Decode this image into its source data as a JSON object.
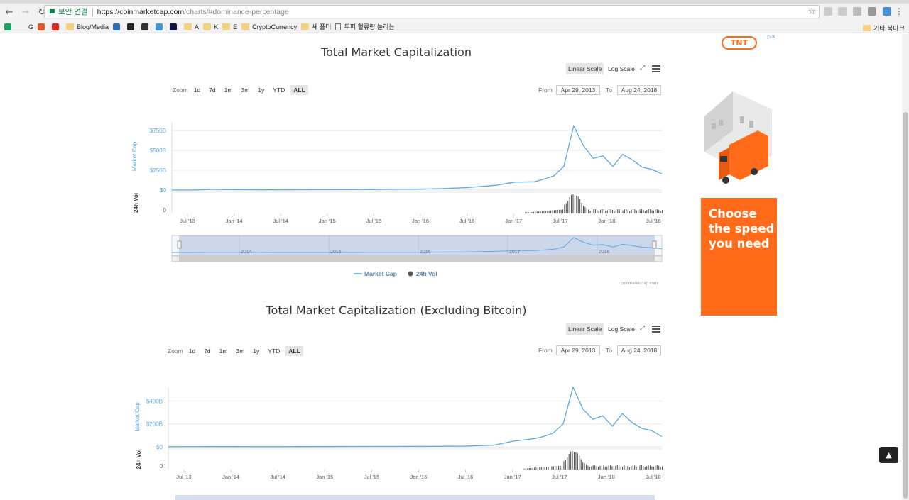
{
  "browser": {
    "secure_label": "보안 연결",
    "url_host": "https://coinmarketcap.com",
    "url_path": "/charts/#dominance-percentage",
    "bookmarks": [
      {
        "label": "",
        "type": "icon",
        "color": "#1aa260"
      },
      {
        "label": "G",
        "type": "text",
        "color": "#4285f4"
      },
      {
        "label": "",
        "type": "icon",
        "color": "#e65a28"
      },
      {
        "label": "",
        "type": "icon",
        "color": "#e62117"
      },
      {
        "label": "Blog/Media",
        "type": "folder"
      },
      {
        "label": "",
        "type": "icon",
        "color": "#2a6ebb"
      },
      {
        "label": "",
        "type": "icon",
        "color": "#222222"
      },
      {
        "label": "",
        "type": "icon",
        "color": "#333333"
      },
      {
        "label": "",
        "type": "icon",
        "color": "#3b99d8"
      },
      {
        "label": "",
        "type": "icon",
        "color": "#111144"
      },
      {
        "label": "A",
        "type": "folder"
      },
      {
        "label": "K",
        "type": "folder"
      },
      {
        "label": "E",
        "type": "folder"
      },
      {
        "label": "CryptoCurrency",
        "type": "folder"
      },
      {
        "label": "새 폴더",
        "type": "folder"
      },
      {
        "label": "두피 혈류량 늘리는",
        "type": "page"
      }
    ],
    "other_bookmarks": "기타 북마크"
  },
  "chart1": {
    "title": "Total Market Capitalization",
    "scale_linear": "Linear Scale",
    "scale_log": "Log Scale",
    "zoom_label": "Zoom",
    "zoom_options": [
      "1d",
      "7d",
      "1m",
      "3m",
      "1y",
      "YTD",
      "ALL"
    ],
    "from_label": "From",
    "from_value": "Apr 29, 2013",
    "to_label": "To",
    "to_value": "Aug 24, 2018",
    "credit": "coinmarketcap.com"
  },
  "chart2": {
    "title": "Total Market Capitalization (Excluding Bitcoin)",
    "scale_linear": "Linear Scale",
    "scale_log": "Log Scale",
    "zoom_label": "Zoom",
    "zoom_options": [
      "1d",
      "7d",
      "1m",
      "3m",
      "1y",
      "YTD",
      "ALL"
    ],
    "from_label": "From",
    "from_value": "Apr 29, 2013",
    "to_label": "To",
    "to_value": "Aug 24, 2018"
  },
  "ad": {
    "brand": "TNT",
    "headline": "Choose the speed you need"
  },
  "chart_data": [
    {
      "type": "line",
      "title": "Total Market Capitalization",
      "ylabel": "Market Cap",
      "y2label": "24h Vol",
      "ylim": [
        0,
        850
      ],
      "y_ticks": [
        "$0",
        "$250B",
        "$500B",
        "$750B"
      ],
      "vol_ticks": [
        "0"
      ],
      "x_ticks": [
        "Jul '13",
        "Jan '14",
        "Jul '14",
        "Jan '15",
        "Jul '15",
        "Jan '16",
        "Jul '16",
        "Jan '17",
        "Jul '17",
        "Jan '18",
        "Jul '18"
      ],
      "navigator_labels": [
        "2014",
        "2015",
        "2016",
        "2017",
        "2018"
      ],
      "legend": [
        "Market Cap",
        "24h Vol"
      ],
      "series": [
        {
          "name": "Market Cap",
          "color": "#5aa8dc",
          "x": [
            0,
            5,
            8,
            10,
            12,
            20,
            30,
            40,
            45,
            50,
            55,
            60,
            66,
            70,
            74,
            76,
            78,
            80,
            82,
            84,
            86,
            88,
            90,
            92,
            94,
            96,
            98,
            100
          ],
          "values": [
            1,
            1,
            10,
            8,
            6,
            4,
            5,
            7,
            10,
            12,
            18,
            30,
            60,
            100,
            105,
            140,
            180,
            300,
            810,
            560,
            400,
            430,
            300,
            450,
            380,
            290,
            260,
            205
          ]
        }
      ],
      "volume": {
        "name": "24h Vol",
        "color": "#555555",
        "peak_x": 82
      }
    },
    {
      "type": "line",
      "title": "Total Market Capitalization (Excluding Bitcoin)",
      "ylabel": "Market Cap",
      "y2label": "24h Vol",
      "ylim": [
        0,
        520
      ],
      "y_ticks": [
        "$0",
        "$200B",
        "$400B"
      ],
      "vol_ticks": [
        "0"
      ],
      "x_ticks": [
        "Jul '13",
        "Jan '14",
        "Jul '14",
        "Jan '15",
        "Jul '15",
        "Jan '16",
        "Jul '16",
        "Jan '17",
        "Jul '17",
        "Jan '18",
        "Jul '18"
      ],
      "series": [
        {
          "name": "Market Cap",
          "color": "#5aa8dc",
          "x": [
            0,
            10,
            20,
            30,
            40,
            50,
            60,
            66,
            70,
            74,
            76,
            78,
            80,
            82,
            84,
            86,
            88,
            90,
            92,
            94,
            96,
            98,
            100
          ],
          "values": [
            1,
            2,
            1,
            2,
            3,
            4,
            6,
            15,
            50,
            70,
            90,
            120,
            200,
            520,
            330,
            240,
            270,
            180,
            290,
            210,
            160,
            140,
            90
          ]
        }
      ],
      "volume": {
        "name": "24h Vol",
        "color": "#555555",
        "peak_x": 82
      }
    }
  ]
}
